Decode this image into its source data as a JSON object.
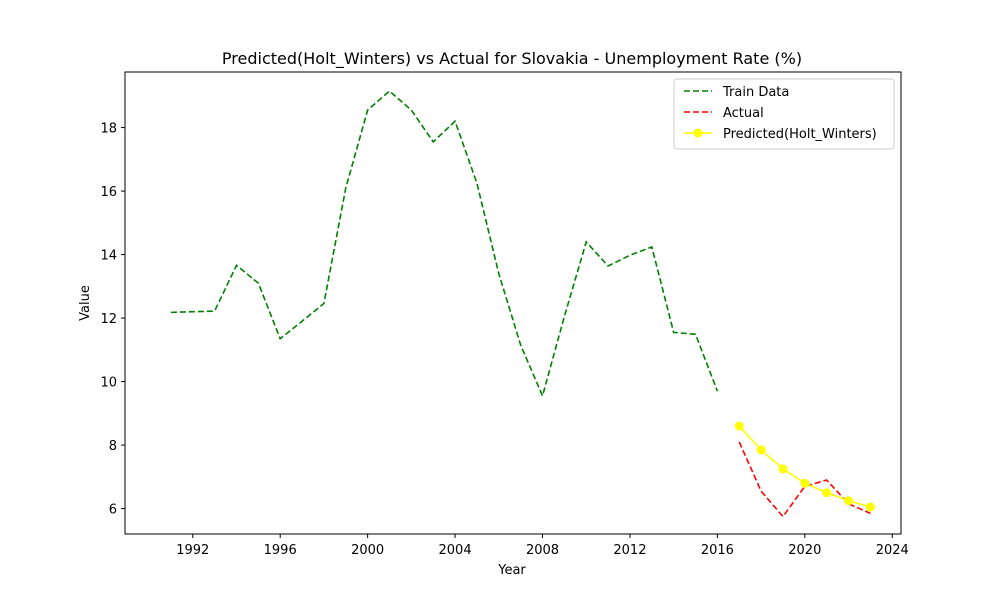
{
  "chart_data": {
    "type": "line",
    "title": "Predicted(Holt_Winters) vs Actual for Slovakia - Unemployment Rate (%)",
    "xlabel": "Year",
    "ylabel": "Value",
    "xlim": [
      1988.9,
      2024.4
    ],
    "ylim": [
      5.2,
      19.75
    ],
    "xticks": [
      1992,
      1996,
      2000,
      2004,
      2008,
      2012,
      2016,
      2020,
      2024
    ],
    "yticks": [
      6,
      8,
      10,
      12,
      14,
      16,
      18
    ],
    "legend_position": "top-right",
    "grid": false,
    "series": [
      {
        "name": "Train Data",
        "color": "#008000",
        "style": "dashed",
        "markers": false,
        "x": [
          1991,
          1992,
          1993,
          1994,
          1995,
          1996,
          1997,
          1998,
          1999,
          2000,
          2001,
          2002,
          2003,
          2004,
          2005,
          2006,
          2007,
          2008,
          2009,
          2010,
          2011,
          2012,
          2013,
          2014,
          2015,
          2016
        ],
        "y": [
          12.18,
          12.2,
          12.22,
          13.66,
          13.1,
          11.35,
          11.9,
          12.46,
          16.1,
          18.55,
          19.15,
          18.55,
          17.55,
          18.2,
          16.25,
          13.4,
          11.15,
          9.55,
          12.05,
          14.4,
          13.64,
          13.98,
          14.24,
          11.55,
          11.49,
          9.7
        ]
      },
      {
        "name": "Actual",
        "color": "#ff0000",
        "style": "dashed",
        "markers": false,
        "x": [
          2017,
          2018,
          2019,
          2020,
          2021,
          2022,
          2023
        ],
        "y": [
          8.1,
          6.55,
          5.75,
          6.7,
          6.9,
          6.15,
          5.85
        ]
      },
      {
        "name": "Predicted(Holt_Winters)",
        "color": "#ffff00",
        "style": "solid",
        "markers": true,
        "x": [
          2017,
          2018,
          2019,
          2020,
          2021,
          2022,
          2023
        ],
        "y": [
          8.6,
          7.85,
          7.25,
          6.8,
          6.5,
          6.25,
          6.05
        ]
      }
    ]
  }
}
